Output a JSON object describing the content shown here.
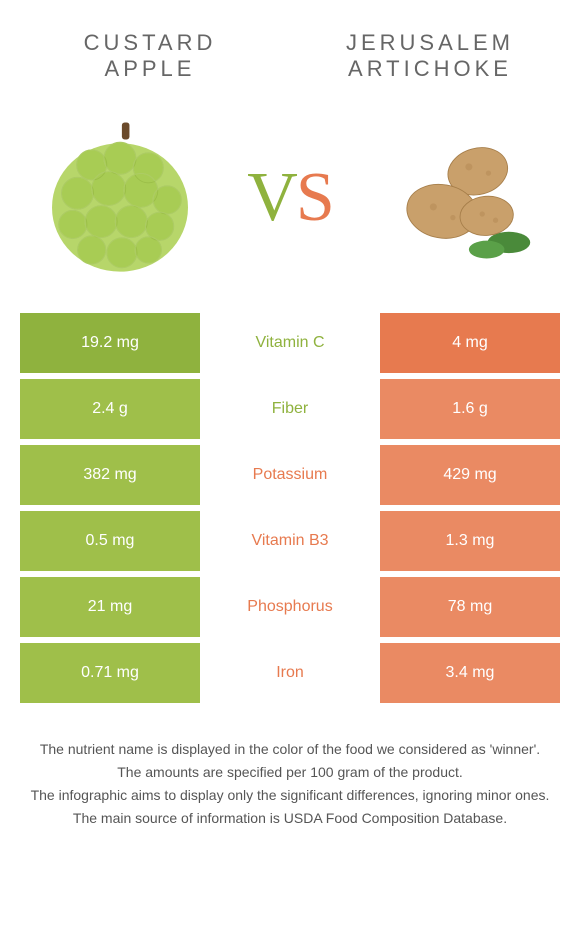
{
  "colors": {
    "left_header": "#8fb23e",
    "left_row": "#9fbf4a",
    "right_header": "#e77a4f",
    "right_row": "#ea8a63",
    "mid_left": "#8fb23e",
    "mid_right": "#e77a4f",
    "title_text": "#666666",
    "footer_text": "#555555"
  },
  "header": {
    "left_title": "CUSTARD APPLE",
    "right_title": "JERUSALEM ARTICHOKE"
  },
  "vs": {
    "v": "V",
    "s": "S"
  },
  "rows": [
    {
      "left": "19.2 mg",
      "mid": "Vitamin C",
      "right": "4 mg",
      "winner": "left"
    },
    {
      "left": "2.4 g",
      "mid": "Fiber",
      "right": "1.6 g",
      "winner": "left"
    },
    {
      "left": "382 mg",
      "mid": "Potassium",
      "right": "429 mg",
      "winner": "right"
    },
    {
      "left": "0.5 mg",
      "mid": "Vitamin B3",
      "right": "1.3 mg",
      "winner": "right"
    },
    {
      "left": "21 mg",
      "mid": "Phosphorus",
      "right": "78 mg",
      "winner": "right"
    },
    {
      "left": "0.71 mg",
      "mid": "Iron",
      "right": "3.4 mg",
      "winner": "right"
    }
  ],
  "footer": {
    "line1": "The nutrient name is displayed in the color of the food we considered as 'winner'.",
    "line2": "The amounts are specified per 100 gram of the product.",
    "line3": "The infographic aims to display only the significant differences, ignoring minor ones.",
    "line4": "The main source of information is USDA Food Composition Database."
  }
}
